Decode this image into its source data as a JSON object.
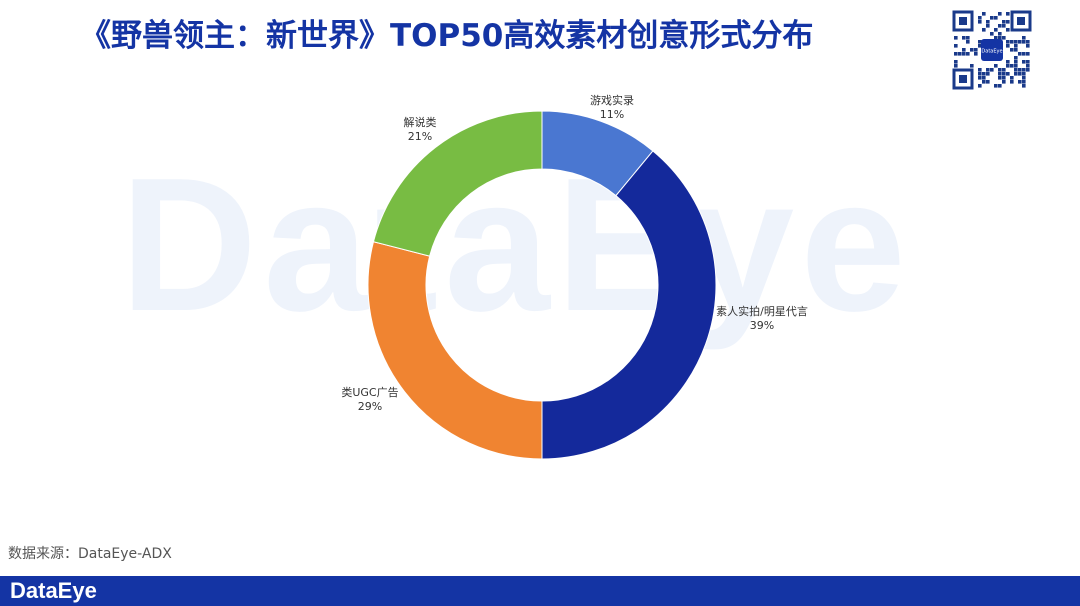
{
  "header": {
    "title": "《野兽领主：新世界》TOP50高效素材创意形式分布"
  },
  "watermark": {
    "text": "DataEye"
  },
  "qr": {
    "center_text": "DataEye"
  },
  "colors": {
    "brand": "#1434a4",
    "slice_1": "#4a77d1",
    "slice_2": "#14299b",
    "slice_3": "#f08431",
    "slice_4": "#78bc43"
  },
  "chart_data": {
    "type": "pie",
    "donut": true,
    "categories": [
      "游戏实录",
      "素人实拍/明星代言",
      "类UGC广告",
      "解说类"
    ],
    "values": [
      11,
      39,
      29,
      21
    ],
    "value_labels": [
      "11%",
      "39%",
      "29%",
      "21%"
    ],
    "legend": "none"
  },
  "footer": {
    "source": "数据来源：DataEye-ADX",
    "logo": "DataEye"
  }
}
